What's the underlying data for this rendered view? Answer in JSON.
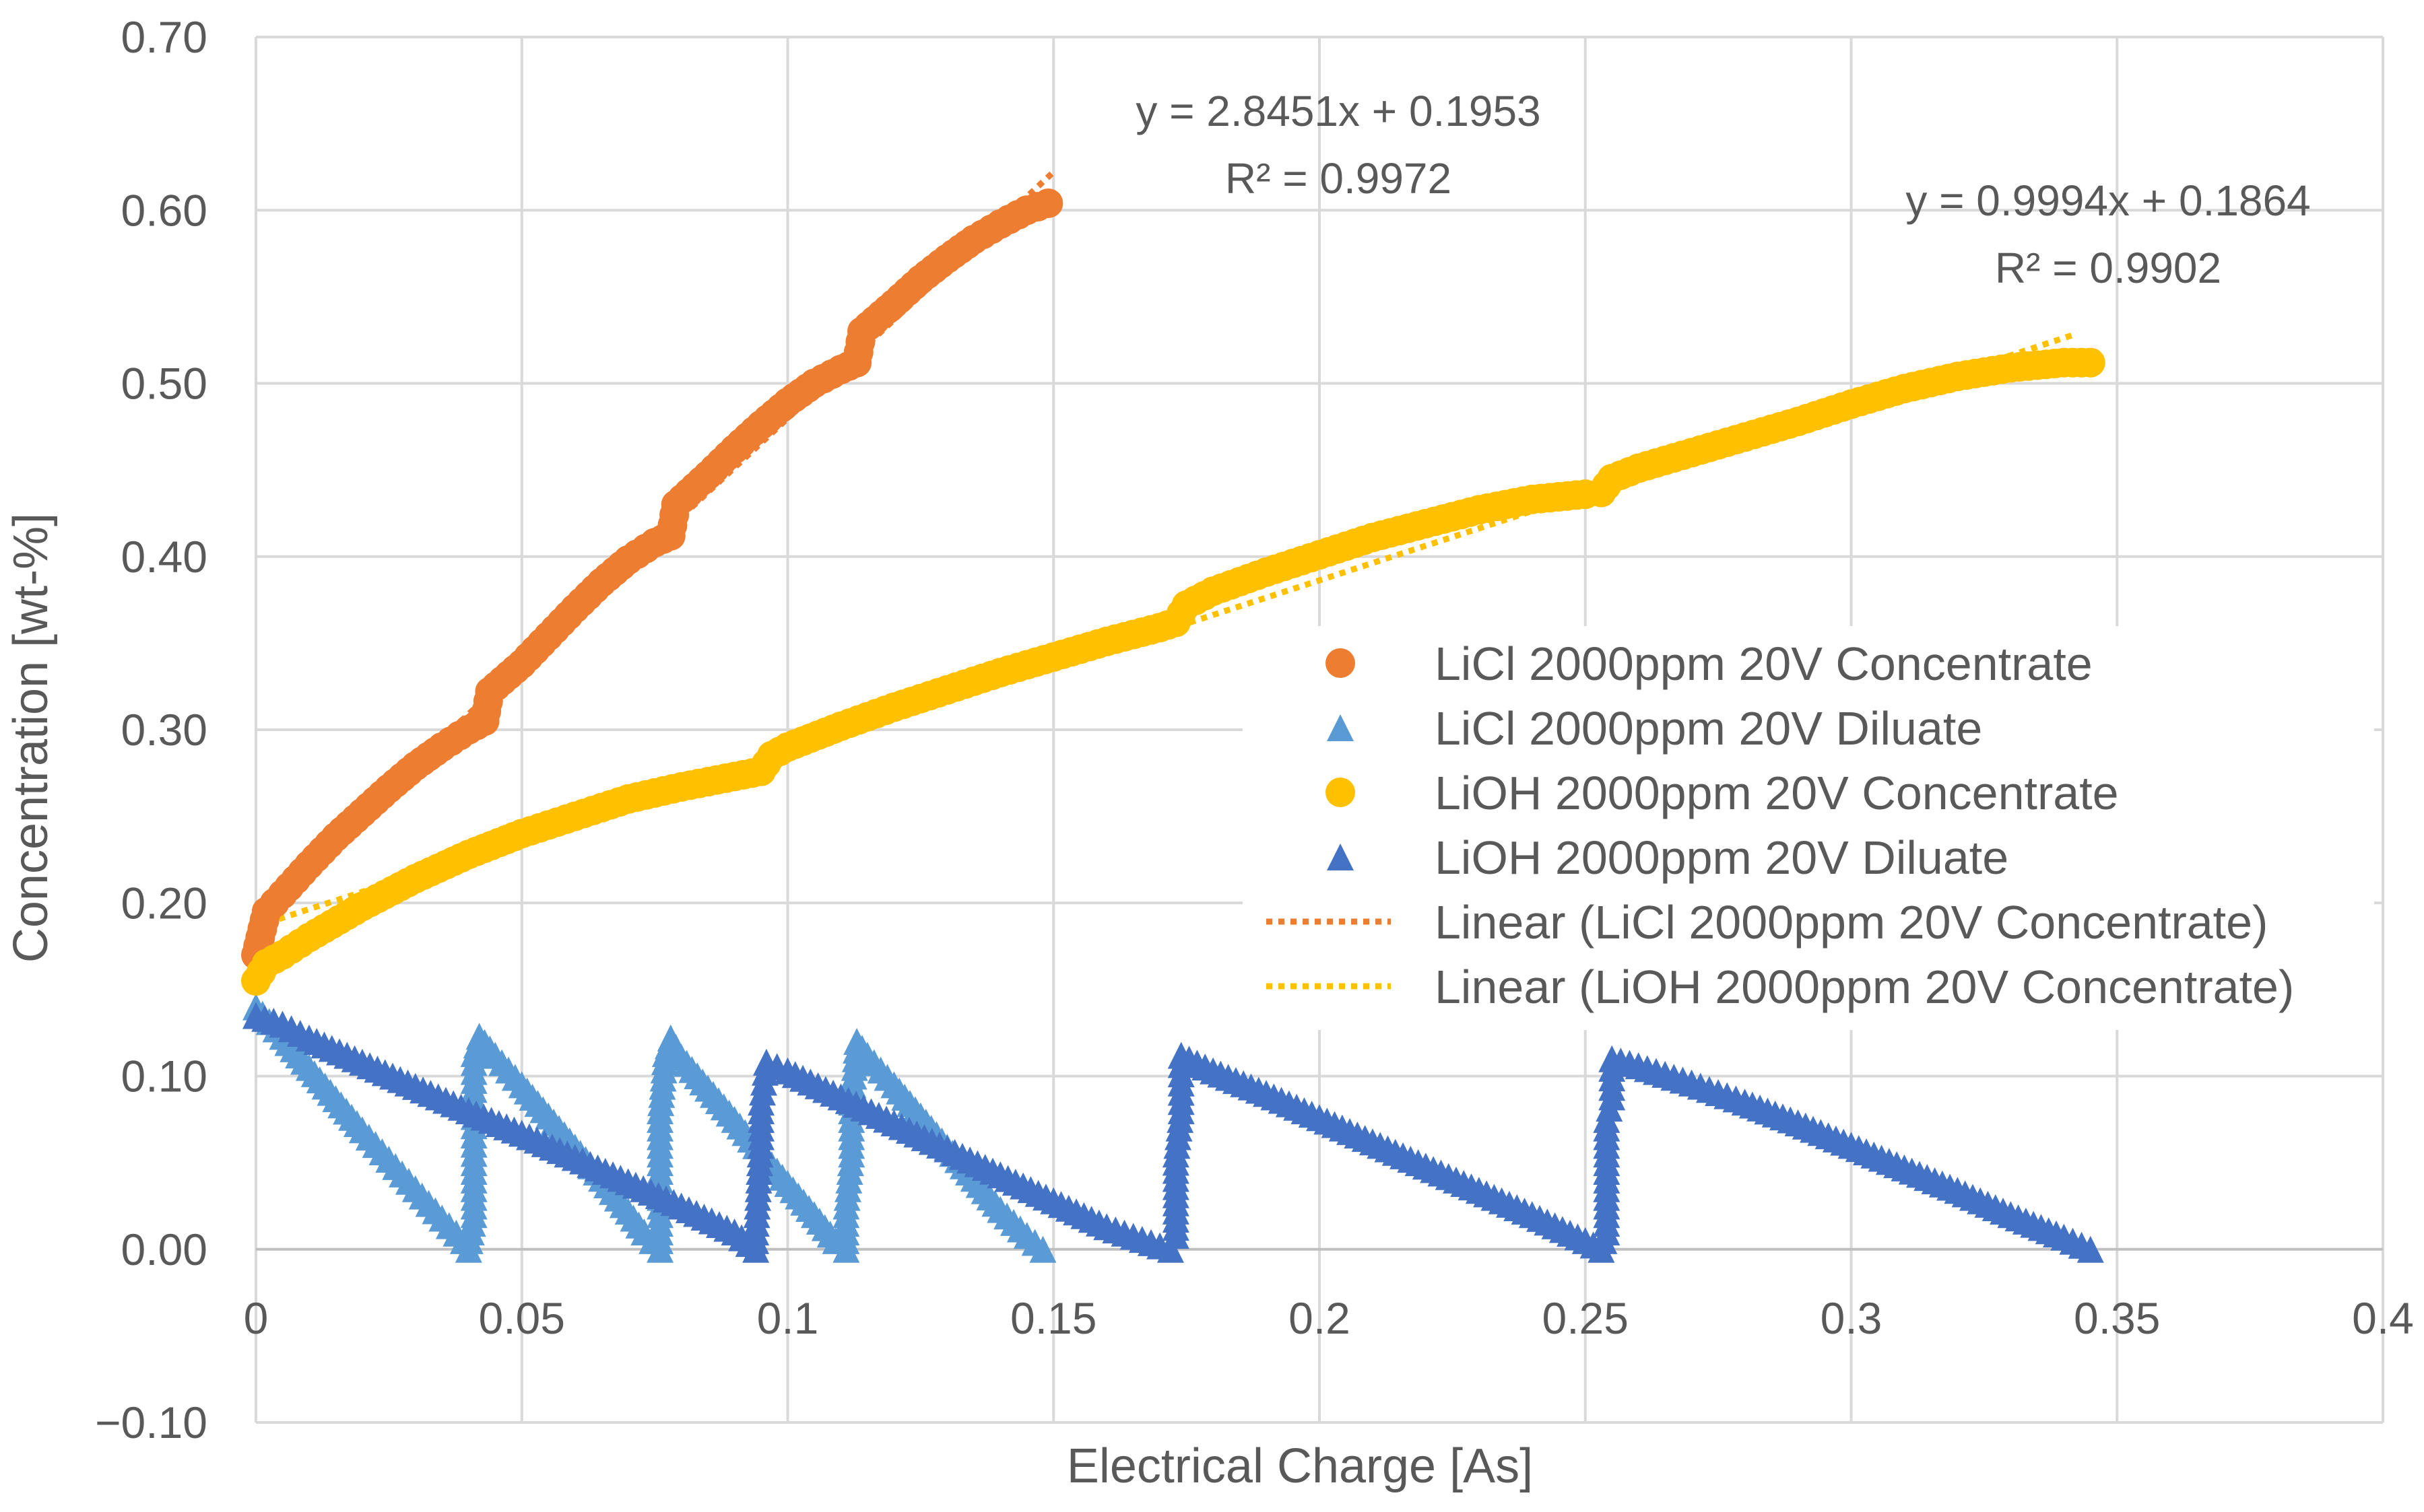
{
  "chart_data": {
    "type": "scatter",
    "title": "",
    "xlabel": "Electrical Charge [As]",
    "ylabel": "Concentration [wt-%]",
    "xlim": [
      0,
      0.4
    ],
    "ylim": [
      -0.1,
      0.7
    ],
    "x_ticks": [
      "0",
      "0.05",
      "0.1",
      "0.15",
      "0.2",
      "0.25",
      "0.3",
      "0.35",
      "0.4"
    ],
    "y_ticks": [
      "−0.10",
      "0.00",
      "0.10",
      "0.20",
      "0.30",
      "0.40",
      "0.50",
      "0.60",
      "0.70"
    ],
    "grid": true,
    "legend_position": "right",
    "legend": [
      {
        "label": "LiCl 2000ppm 20V Concentrate",
        "marker": "circle",
        "color": "#ED7D31"
      },
      {
        "label": "LiCl 2000ppm 20V Diluate",
        "marker": "triangle",
        "color": "#5B9BD5"
      },
      {
        "label": "LiOH 2000ppm 20V Concentrate",
        "marker": "circle",
        "color": "#FFC000"
      },
      {
        "label": "LiOH 2000ppm 20V Diluate",
        "marker": "triangle",
        "color": "#4472C4"
      },
      {
        "label": "Linear (LiCl 2000ppm 20V Concentrate)",
        "marker": "dotted-line",
        "color": "#ED7D31"
      },
      {
        "label": "Linear (LiOH 2000ppm 20V Concentrate)",
        "marker": "dotted-line",
        "color": "#FFC000"
      }
    ],
    "series": [
      {
        "name": "LiCl 2000ppm 20V Concentrate",
        "marker": "circle",
        "color": "#ED7D31",
        "x": [
          0,
          0.002,
          0.005,
          0.01,
          0.015,
          0.02,
          0.025,
          0.03,
          0.035,
          0.04,
          0.043,
          0.044,
          0.05,
          0.055,
          0.06,
          0.065,
          0.07,
          0.075,
          0.078,
          0.079,
          0.085,
          0.09,
          0.095,
          0.1,
          0.105,
          0.11,
          0.113,
          0.114,
          0.12,
          0.125,
          0.13,
          0.135,
          0.14,
          0.145,
          0.149
        ],
        "y": [
          0.17,
          0.195,
          0.205,
          0.222,
          0.238,
          0.252,
          0.266,
          0.279,
          0.29,
          0.3,
          0.305,
          0.322,
          0.338,
          0.354,
          0.37,
          0.385,
          0.398,
          0.408,
          0.412,
          0.43,
          0.447,
          0.462,
          0.476,
          0.489,
          0.5,
          0.508,
          0.512,
          0.53,
          0.546,
          0.56,
          0.572,
          0.583,
          0.592,
          0.6,
          0.604
        ]
      },
      {
        "name": "LiCl 2000ppm 20V Diluate",
        "marker": "triangle",
        "color": "#5B9BD5",
        "x": [
          0,
          0.005,
          0.01,
          0.015,
          0.02,
          0.025,
          0.03,
          0.035,
          0.039,
          0.04,
          0.041,
          0.041,
          0.041,
          0.041,
          0.042,
          0.045,
          0.05,
          0.055,
          0.06,
          0.065,
          0.07,
          0.073,
          0.076,
          0.076,
          0.076,
          0.077,
          0.078,
          0.08,
          0.085,
          0.09,
          0.095,
          0.1,
          0.105,
          0.109,
          0.111,
          0.111,
          0.112,
          0.112,
          0.113,
          0.115,
          0.12,
          0.125,
          0.13,
          0.135,
          0.14,
          0.145,
          0.148
        ],
        "y": [
          0.14,
          0.123,
          0.105,
          0.087,
          0.069,
          0.052,
          0.035,
          0.018,
          0.005,
          0.0,
          0.02,
          0.05,
          0.082,
          0.113,
          0.123,
          0.112,
          0.095,
          0.077,
          0.059,
          0.041,
          0.022,
          0.01,
          0.0,
          0.045,
          0.08,
          0.113,
          0.122,
          0.111,
          0.093,
          0.075,
          0.056,
          0.038,
          0.02,
          0.005,
          0.0,
          0.025,
          0.055,
          0.085,
          0.12,
          0.112,
          0.095,
          0.077,
          0.059,
          0.041,
          0.023,
          0.008,
          0.0
        ]
      },
      {
        "name": "LiOH 2000ppm 20V Concentrate",
        "marker": "circle",
        "color": "#FFC000",
        "x": [
          0,
          0.002,
          0.005,
          0.01,
          0.02,
          0.03,
          0.04,
          0.05,
          0.06,
          0.07,
          0.08,
          0.09,
          0.095,
          0.097,
          0.1,
          0.11,
          0.12,
          0.13,
          0.14,
          0.15,
          0.16,
          0.17,
          0.173,
          0.175,
          0.18,
          0.19,
          0.2,
          0.21,
          0.22,
          0.23,
          0.24,
          0.25,
          0.253,
          0.255,
          0.26,
          0.27,
          0.28,
          0.29,
          0.3,
          0.31,
          0.32,
          0.33,
          0.34,
          0.345
        ],
        "y": [
          0.155,
          0.165,
          0.17,
          0.18,
          0.198,
          0.214,
          0.228,
          0.24,
          0.25,
          0.26,
          0.267,
          0.273,
          0.276,
          0.285,
          0.29,
          0.302,
          0.313,
          0.323,
          0.333,
          0.342,
          0.351,
          0.359,
          0.362,
          0.372,
          0.38,
          0.391,
          0.401,
          0.411,
          0.419,
          0.427,
          0.433,
          0.436,
          0.437,
          0.445,
          0.451,
          0.46,
          0.469,
          0.478,
          0.488,
          0.497,
          0.504,
          0.509,
          0.512,
          0.512
        ]
      },
      {
        "name": "LiOH 2000ppm 20V Diluate",
        "marker": "triangle",
        "color": "#4472C4",
        "x": [
          0,
          0.005,
          0.01,
          0.02,
          0.03,
          0.04,
          0.05,
          0.06,
          0.07,
          0.08,
          0.09,
          0.094,
          0.094,
          0.095,
          0.095,
          0.096,
          0.1,
          0.11,
          0.12,
          0.13,
          0.14,
          0.15,
          0.16,
          0.17,
          0.172,
          0.173,
          0.173,
          0.174,
          0.174,
          0.18,
          0.19,
          0.2,
          0.21,
          0.22,
          0.23,
          0.24,
          0.25,
          0.253,
          0.254,
          0.254,
          0.255,
          0.255,
          0.26,
          0.27,
          0.28,
          0.29,
          0.3,
          0.31,
          0.32,
          0.33,
          0.34,
          0.345
        ],
        "y": [
          0.135,
          0.13,
          0.122,
          0.108,
          0.094,
          0.08,
          0.067,
          0.053,
          0.039,
          0.025,
          0.01,
          0.0,
          0.01,
          0.065,
          0.085,
          0.108,
          0.103,
          0.088,
          0.073,
          0.058,
          0.043,
          0.028,
          0.013,
          0.002,
          0.0,
          0.008,
          0.055,
          0.08,
          0.112,
          0.103,
          0.09,
          0.076,
          0.062,
          0.048,
          0.034,
          0.02,
          0.005,
          0.0,
          0.01,
          0.075,
          0.088,
          0.11,
          0.106,
          0.096,
          0.085,
          0.073,
          0.06,
          0.047,
          0.034,
          0.02,
          0.007,
          0.0
        ]
      }
    ],
    "trendlines": [
      {
        "name": "Linear (LiCl 2000ppm 20V Concentrate)",
        "color": "#ED7D31",
        "slope": 2.8451,
        "intercept": 0.1953,
        "x_range": [
          0,
          0.15
        ],
        "equation": "y = 2.8451x + 0.1953",
        "r2": "R² = 0.9972"
      },
      {
        "name": "Linear (LiOH 2000ppm 20V Concentrate)",
        "color": "#FFC000",
        "slope": 0.9994,
        "intercept": 0.1864,
        "x_range": [
          0,
          0.342
        ],
        "equation": "y = 0.9994x + 0.1864",
        "r2": "R² = 0.9902"
      }
    ]
  }
}
